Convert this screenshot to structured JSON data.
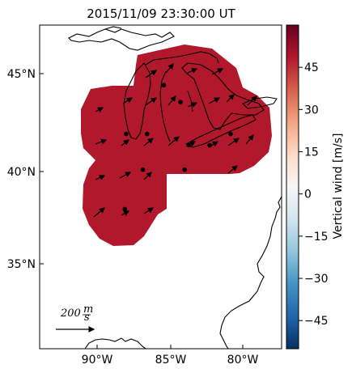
{
  "title": "2015/11/09 23:30:00 UT",
  "axes": {
    "lat_ticks": [
      {
        "label": "45°N",
        "value": 45
      },
      {
        "label": "40°N",
        "value": 40
      },
      {
        "label": "35°N",
        "value": 35
      }
    ],
    "lon_ticks": [
      {
        "label": "90°W",
        "value": -90
      },
      {
        "label": "85°W",
        "value": -85
      },
      {
        "label": "80°W",
        "value": -80
      }
    ]
  },
  "colorbar": {
    "label": "Vertical wind [m/s]",
    "range": [
      -55,
      60
    ],
    "ticks": [
      "45",
      "30",
      "15",
      "0",
      "−15",
      "−30",
      "−45"
    ],
    "tick_values": [
      45,
      30,
      15,
      0,
      -15,
      -30,
      -45
    ],
    "colormap": "RdBu_r",
    "colors": [
      "#053061",
      "#2166ac",
      "#4393c3",
      "#92c5de",
      "#d1e5f0",
      "#f7f7f7",
      "#fddbc7",
      "#f4a582",
      "#d6604d",
      "#b2182b",
      "#67001f"
    ]
  },
  "field": {
    "fill_color": "#b2182b",
    "value_note": "saturated positive vertical wind"
  },
  "scale_arrow": {
    "label": "200",
    "unit_numerator": "m",
    "unit_denominator": "s"
  },
  "stations": [
    {
      "lon": -88.2,
      "lat": 42.0
    },
    {
      "lon": -86.7,
      "lat": 42.0
    },
    {
      "lon": -83.7,
      "lat": 41.4
    },
    {
      "lon": -82.2,
      "lat": 41.4
    },
    {
      "lon": -80.7,
      "lat": 42.0
    },
    {
      "lon": -85.5,
      "lat": 44.6
    },
    {
      "lon": -84.3,
      "lat": 43.7
    },
    {
      "lon": -87.0,
      "lat": 40.1
    },
    {
      "lon": -84.0,
      "lat": 40.1
    },
    {
      "lon": -88.3,
      "lat": 38.0
    }
  ],
  "vectors_note": "wind arrows point predominantly toward the northeast"
}
